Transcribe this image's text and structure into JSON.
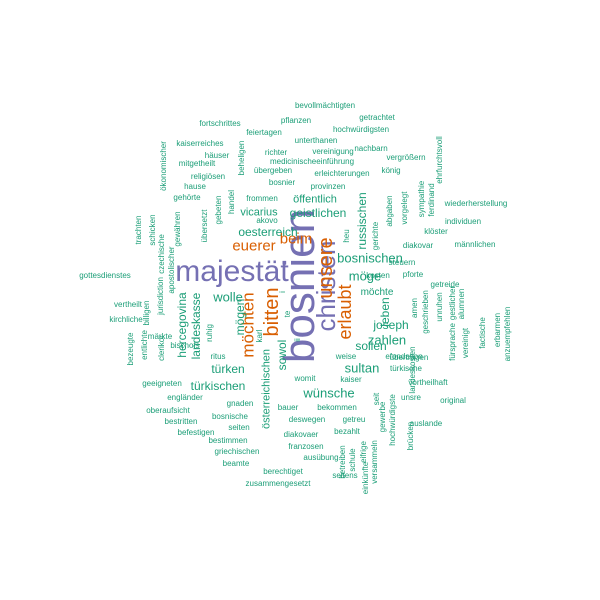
{
  "colors": {
    "background": "#ffffff",
    "large_purple": "#7570b3",
    "orange": "#d95f02",
    "teal": "#1b9e77"
  },
  "words": [
    {
      "text": "bosnien",
      "color": "purple",
      "orientation": "vertical"
    },
    {
      "text": "majestät",
      "color": "purple",
      "orientation": "horizontal"
    },
    {
      "text": "christen",
      "color": "purple",
      "orientation": "vertical"
    },
    {
      "text": "unsere",
      "color": "orange",
      "orientation": "vertical"
    },
    {
      "text": "erlaubt",
      "color": "orange",
      "orientation": "vertical"
    },
    {
      "text": "euerer",
      "color": "orange",
      "orientation": "horizontal"
    },
    {
      "text": "beim",
      "color": "orange",
      "orientation": "horizontal"
    },
    {
      "text": "bitten",
      "color": "orange",
      "orientation": "vertical"
    },
    {
      "text": "möchten",
      "color": "orange",
      "orientation": "vertical"
    },
    {
      "text": "wolle",
      "color": "teal",
      "orientation": "horizontal"
    },
    {
      "text": "sultan",
      "color": "teal",
      "orientation": "horizontal"
    },
    {
      "text": "zahlen",
      "color": "teal",
      "orientation": "horizontal"
    },
    {
      "text": "möge",
      "color": "teal",
      "orientation": "horizontal"
    },
    {
      "text": "bosnischen",
      "color": "teal",
      "orientation": "horizontal"
    },
    {
      "text": "geistlichen",
      "color": "teal",
      "orientation": "horizontal"
    },
    {
      "text": "oesterreich",
      "color": "teal",
      "orientation": "horizontal"
    },
    {
      "text": "wünsche",
      "color": "teal",
      "orientation": "horizontal"
    },
    {
      "text": "sollen",
      "color": "teal",
      "orientation": "horizontal"
    },
    {
      "text": "joseph",
      "color": "teal",
      "orientation": "horizontal"
    },
    {
      "text": "leben",
      "color": "teal",
      "orientation": "vertical"
    },
    {
      "text": "sowol",
      "color": "teal",
      "orientation": "vertical"
    },
    {
      "text": "mögen",
      "color": "teal",
      "orientation": "vertical"
    },
    {
      "text": "türken",
      "color": "teal",
      "orientation": "horizontal"
    },
    {
      "text": "türkischen",
      "color": "teal",
      "orientation": "horizontal"
    },
    {
      "text": "landeskasse",
      "color": "teal",
      "orientation": "vertical"
    },
    {
      "text": "hercegovina",
      "color": "teal",
      "orientation": "vertical"
    },
    {
      "text": "russischen",
      "color": "teal",
      "orientation": "vertical"
    },
    {
      "text": "möchte",
      "color": "teal",
      "orientation": "horizontal"
    },
    {
      "text": "öffentlich",
      "color": "teal",
      "orientation": "horizontal"
    },
    {
      "text": "vicarius",
      "color": "teal",
      "orientation": "horizontal"
    },
    {
      "text": "österreichischen",
      "color": "teal",
      "orientation": "vertical"
    },
    {
      "text": "bevollmächtigten",
      "color": "teal",
      "orientation": "horizontal"
    },
    {
      "text": "pflanzen",
      "color": "teal",
      "orientation": "horizontal"
    },
    {
      "text": "fortschrittes",
      "color": "teal",
      "orientation": "horizontal"
    },
    {
      "text": "getrachtet",
      "color": "teal",
      "orientation": "horizontal"
    },
    {
      "text": "feiertagen",
      "color": "teal",
      "orientation": "horizontal"
    },
    {
      "text": "hochwürdigsten",
      "color": "teal",
      "orientation": "horizontal"
    },
    {
      "text": "kaiserreiches",
      "color": "teal",
      "orientation": "horizontal"
    },
    {
      "text": "unterthanen",
      "color": "teal",
      "orientation": "horizontal"
    },
    {
      "text": "nachbarn",
      "color": "teal",
      "orientation": "horizontal"
    },
    {
      "text": "richter",
      "color": "teal",
      "orientation": "horizontal"
    },
    {
      "text": "vereinigung",
      "color": "teal",
      "orientation": "horizontal"
    },
    {
      "text": "häuser",
      "color": "teal",
      "orientation": "horizontal"
    },
    {
      "text": "medicinischeeinführung",
      "color": "teal",
      "orientation": "horizontal"
    },
    {
      "text": "vergrößern",
      "color": "teal",
      "orientation": "horizontal"
    },
    {
      "text": "mitgetheilt",
      "color": "teal",
      "orientation": "horizontal"
    },
    {
      "text": "übergeben",
      "color": "teal",
      "orientation": "horizontal"
    },
    {
      "text": "erleichterungen",
      "color": "teal",
      "orientation": "horizontal"
    },
    {
      "text": "religiösen",
      "color": "teal",
      "orientation": "horizontal"
    },
    {
      "text": "bosnier",
      "color": "teal",
      "orientation": "horizontal"
    },
    {
      "text": "könig",
      "color": "teal",
      "orientation": "horizontal"
    },
    {
      "text": "hause",
      "color": "teal",
      "orientation": "horizontal"
    },
    {
      "text": "provinzen",
      "color": "teal",
      "orientation": "horizontal"
    },
    {
      "text": "gehörte",
      "color": "teal",
      "orientation": "horizontal"
    },
    {
      "text": "frommen",
      "color": "teal",
      "orientation": "horizontal"
    },
    {
      "text": "akovo",
      "color": "teal",
      "orientation": "horizontal"
    },
    {
      "text": "heu",
      "color": "teal",
      "orientation": "vertical"
    },
    {
      "text": "gerichte",
      "color": "teal",
      "orientation": "vertical"
    },
    {
      "text": "abgaben",
      "color": "teal",
      "orientation": "vertical"
    },
    {
      "text": "vorgelegt",
      "color": "teal",
      "orientation": "vertical"
    },
    {
      "text": "wiederherstellung",
      "color": "teal",
      "orientation": "horizontal"
    },
    {
      "text": "individuen",
      "color": "teal",
      "orientation": "horizontal"
    },
    {
      "text": "klöster",
      "color": "teal",
      "orientation": "horizontal"
    },
    {
      "text": "diakovar",
      "color": "teal",
      "orientation": "horizontal"
    },
    {
      "text": "männlichen",
      "color": "teal",
      "orientation": "horizontal"
    },
    {
      "text": "steuern",
      "color": "teal",
      "orientation": "horizontal"
    },
    {
      "text": "pforte",
      "color": "teal",
      "orientation": "horizontal"
    },
    {
      "text": "kosten",
      "color": "teal",
      "orientation": "horizontal"
    },
    {
      "text": "getreide",
      "color": "teal",
      "orientation": "horizontal"
    },
    {
      "text": "gottesdienstes",
      "color": "teal",
      "orientation": "horizontal"
    },
    {
      "text": "vertheilt",
      "color": "teal",
      "orientation": "horizontal"
    },
    {
      "text": "kirchliche",
      "color": "teal",
      "orientation": "horizontal"
    },
    {
      "text": "märkte",
      "color": "teal",
      "orientation": "horizontal"
    },
    {
      "text": "geeigneten",
      "color": "teal",
      "orientation": "horizontal"
    },
    {
      "text": "engländer",
      "color": "teal",
      "orientation": "horizontal"
    },
    {
      "text": "oberaufsicht",
      "color": "teal",
      "orientation": "horizontal"
    },
    {
      "text": "bestritten",
      "color": "teal",
      "orientation": "horizontal"
    },
    {
      "text": "befestigen",
      "color": "teal",
      "orientation": "horizontal"
    },
    {
      "text": "bestimmen",
      "color": "teal",
      "orientation": "horizontal"
    },
    {
      "text": "griechischen",
      "color": "teal",
      "orientation": "horizontal"
    },
    {
      "text": "beamte",
      "color": "teal",
      "orientation": "horizontal"
    },
    {
      "text": "berechtiget",
      "color": "teal",
      "orientation": "horizontal"
    },
    {
      "text": "zusammengesetzt",
      "color": "teal",
      "orientation": "horizontal"
    },
    {
      "text": "seitens",
      "color": "teal",
      "orientation": "horizontal"
    },
    {
      "text": "ausübung",
      "color": "teal",
      "orientation": "horizontal"
    },
    {
      "text": "franzosen",
      "color": "teal",
      "orientation": "horizontal"
    },
    {
      "text": "diakovaer",
      "color": "teal",
      "orientation": "horizontal"
    },
    {
      "text": "deswegen",
      "color": "teal",
      "orientation": "horizontal"
    },
    {
      "text": "bauer",
      "color": "teal",
      "orientation": "horizontal"
    },
    {
      "text": "bekommen",
      "color": "teal",
      "orientation": "horizontal"
    },
    {
      "text": "bezahlt",
      "color": "teal",
      "orientation": "horizontal"
    },
    {
      "text": "getreu",
      "color": "teal",
      "orientation": "horizontal"
    },
    {
      "text": "gnaden",
      "color": "teal",
      "orientation": "horizontal"
    },
    {
      "text": "bosnische",
      "color": "teal",
      "orientation": "horizontal"
    },
    {
      "text": "seiten",
      "color": "teal",
      "orientation": "horizontal"
    },
    {
      "text": "ritus",
      "color": "teal",
      "orientation": "horizontal"
    },
    {
      "text": "bischofs",
      "color": "teal",
      "orientation": "horizontal"
    },
    {
      "text": "womit",
      "color": "teal",
      "orientation": "horizontal"
    },
    {
      "text": "kaiser",
      "color": "teal",
      "orientation": "horizontal"
    },
    {
      "text": "weise",
      "color": "teal",
      "orientation": "horizontal"
    },
    {
      "text": "übertragen",
      "color": "teal",
      "orientation": "horizontal"
    },
    {
      "text": "türkische",
      "color": "teal",
      "orientation": "horizontal"
    },
    {
      "text": "efondation",
      "color": "teal",
      "orientation": "horizontal"
    },
    {
      "text": "unsre",
      "color": "teal",
      "orientation": "horizontal"
    },
    {
      "text": "vortheilhaft",
      "color": "teal",
      "orientation": "horizontal"
    },
    {
      "text": "original",
      "color": "teal",
      "orientation": "horizontal"
    },
    {
      "text": "auslande",
      "color": "teal",
      "orientation": "horizontal"
    },
    {
      "text": "gewähren",
      "color": "teal",
      "orientation": "vertical"
    },
    {
      "text": "übersetzt",
      "color": "teal",
      "orientation": "vertical"
    },
    {
      "text": "gebeten",
      "color": "teal",
      "orientation": "vertical"
    },
    {
      "text": "handel",
      "color": "teal",
      "orientation": "vertical"
    },
    {
      "text": "beheligen",
      "color": "teal",
      "orientation": "vertical"
    },
    {
      "text": "ökonomischer",
      "color": "teal",
      "orientation": "vertical"
    },
    {
      "text": "trachten",
      "color": "teal",
      "orientation": "vertical"
    },
    {
      "text": "schicken",
      "color": "teal",
      "orientation": "vertical"
    },
    {
      "text": "czechische",
      "color": "teal",
      "orientation": "vertical"
    },
    {
      "text": "apostolischer",
      "color": "teal",
      "orientation": "vertical"
    },
    {
      "text": "jurisdiction",
      "color": "teal",
      "orientation": "vertical"
    },
    {
      "text": "clerikor",
      "color": "teal",
      "orientation": "vertical"
    },
    {
      "text": "ruhig",
      "color": "teal",
      "orientation": "vertical"
    },
    {
      "text": "billigen",
      "color": "teal",
      "orientation": "vertical"
    },
    {
      "text": "entlichte",
      "color": "teal",
      "orientation": "vertical"
    },
    {
      "text": "bezeugte",
      "color": "teal",
      "orientation": "vertical"
    },
    {
      "text": "karl",
      "color": "teal",
      "orientation": "vertical"
    },
    {
      "text": "te",
      "color": "teal",
      "orientation": "vertical"
    },
    {
      "text": "ii",
      "color": "teal",
      "orientation": "vertical"
    },
    {
      "text": "i",
      "color": "teal",
      "orientation": "vertical"
    },
    {
      "text": "sympathie",
      "color": "teal",
      "orientation": "vertical"
    },
    {
      "text": "ehrfurchtsvoll",
      "color": "teal",
      "orientation": "vertical"
    },
    {
      "text": "ferdinand",
      "color": "teal",
      "orientation": "vertical"
    },
    {
      "text": "amen",
      "color": "teal",
      "orientation": "vertical"
    },
    {
      "text": "geschrieben",
      "color": "teal",
      "orientation": "vertical"
    },
    {
      "text": "unruhen",
      "color": "teal",
      "orientation": "vertical"
    },
    {
      "text": "gestlicher",
      "color": "teal",
      "orientation": "vertical"
    },
    {
      "text": "alumnen",
      "color": "teal",
      "orientation": "vertical"
    },
    {
      "text": "landeskosten",
      "color": "teal",
      "orientation": "vertical"
    },
    {
      "text": "fürsprache",
      "color": "teal",
      "orientation": "vertical"
    },
    {
      "text": "vereinigt",
      "color": "teal",
      "orientation": "vertical"
    },
    {
      "text": "factische",
      "color": "teal",
      "orientation": "vertical"
    },
    {
      "text": "erbarmen",
      "color": "teal",
      "orientation": "vertical"
    },
    {
      "text": "anzuempfehlen",
      "color": "teal",
      "orientation": "vertical"
    },
    {
      "text": "hochwürdigste",
      "color": "teal",
      "orientation": "vertical"
    },
    {
      "text": "gewerbe",
      "color": "teal",
      "orientation": "vertical"
    },
    {
      "text": "brücken",
      "color": "teal",
      "orientation": "vertical"
    },
    {
      "text": "versammeln",
      "color": "teal",
      "orientation": "vertical"
    },
    {
      "text": "eifrige",
      "color": "teal",
      "orientation": "vertical"
    },
    {
      "text": "schule",
      "color": "teal",
      "orientation": "vertical"
    },
    {
      "text": "betreiben",
      "color": "teal",
      "orientation": "vertical"
    },
    {
      "text": "einkünfte",
      "color": "teal",
      "orientation": "vertical"
    },
    {
      "text": "seit",
      "color": "teal",
      "orientation": "vertical"
    }
  ]
}
